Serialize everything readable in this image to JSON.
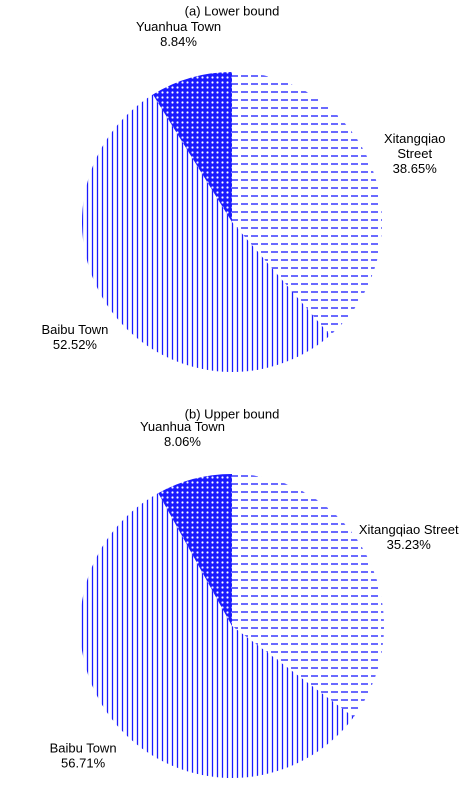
{
  "chart_data": [
    {
      "type": "pie",
      "title": "(a) Lower bound",
      "categories": [
        "Xitangqiao Street",
        "Baibu Town",
        "Yuanhua Town"
      ],
      "values": [
        38.65,
        52.52,
        8.84
      ],
      "value_labels": [
        "38.65%",
        "52.52%",
        "8.84%"
      ],
      "color": "#1a1aff"
    },
    {
      "type": "pie",
      "title": "(b) Upper bound",
      "categories": [
        "Xitangqiao Street",
        "Baibu Town",
        "Yuanhua Town"
      ],
      "values": [
        35.23,
        56.71,
        8.06
      ],
      "value_labels": [
        "35.23%",
        "56.71%",
        "8.06%"
      ],
      "color": "#1a1aff"
    }
  ]
}
